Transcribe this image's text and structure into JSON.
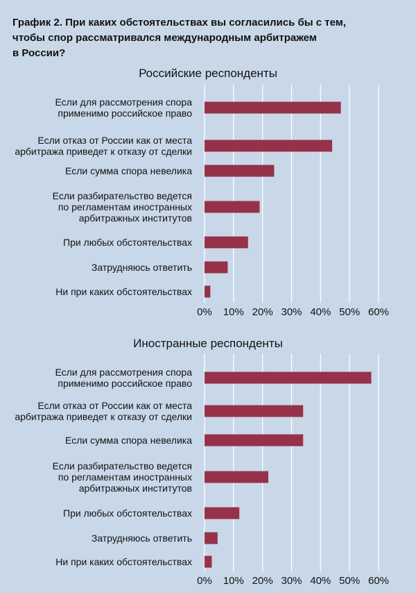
{
  "title_lines": [
    "График 2. При каких обстоятельствах вы согласились бы с тем,",
    "чтобы спор рассматривался международным арбитражем",
    "в России?"
  ],
  "colors": {
    "bar": "#96314a",
    "grid": "#ffffff",
    "background": "#c9d8e9"
  },
  "chart_data": [
    {
      "type": "bar",
      "orientation": "horizontal",
      "title": "Российские респонденты",
      "categories": [
        [
          "Если для рассмотрения спора",
          "применимо российское право"
        ],
        [
          "Если отказ от России как от места",
          "арбитража приведет к отказу от сделки"
        ],
        [
          "Если сумма спора невелика"
        ],
        [
          "Если разбирательство ведется",
          "по регламентам иностранных",
          "арбитражных институтов"
        ],
        [
          "При любых обстоятельствах"
        ],
        [
          "Затрудняюсь ответить"
        ],
        [
          "Ни при каких обстоятельствах"
        ]
      ],
      "values": [
        47,
        44,
        24,
        19,
        15,
        8,
        2
      ],
      "xlim": [
        0,
        60
      ],
      "xticks": [
        "0%",
        "10%",
        "20%",
        "30%",
        "40%",
        "50%",
        "60%"
      ],
      "grid": true
    },
    {
      "type": "bar",
      "orientation": "horizontal",
      "title": "Иностранные респонденты",
      "categories": [
        [
          "Если для рассмотрения спора",
          "применимо российское право"
        ],
        [
          "Если отказ от России как от места",
          "арбитража приведет к отказу от сделки"
        ],
        [
          "Если сумма спора невелика"
        ],
        [
          "Если разбирательство ведется",
          "по регламентам иностранных",
          "арбитражных институтов"
        ],
        [
          "При любых обстоятельствах"
        ],
        [
          "Затрудняюсь ответить"
        ],
        [
          "Ни при каких обстоятельствах"
        ]
      ],
      "values": [
        57.5,
        34,
        34,
        22,
        12,
        4.5,
        2.5
      ],
      "xlim": [
        0,
        60
      ],
      "xticks": [
        "0%",
        "10%",
        "20%",
        "30%",
        "40%",
        "50%",
        "60%"
      ],
      "grid": true
    }
  ]
}
